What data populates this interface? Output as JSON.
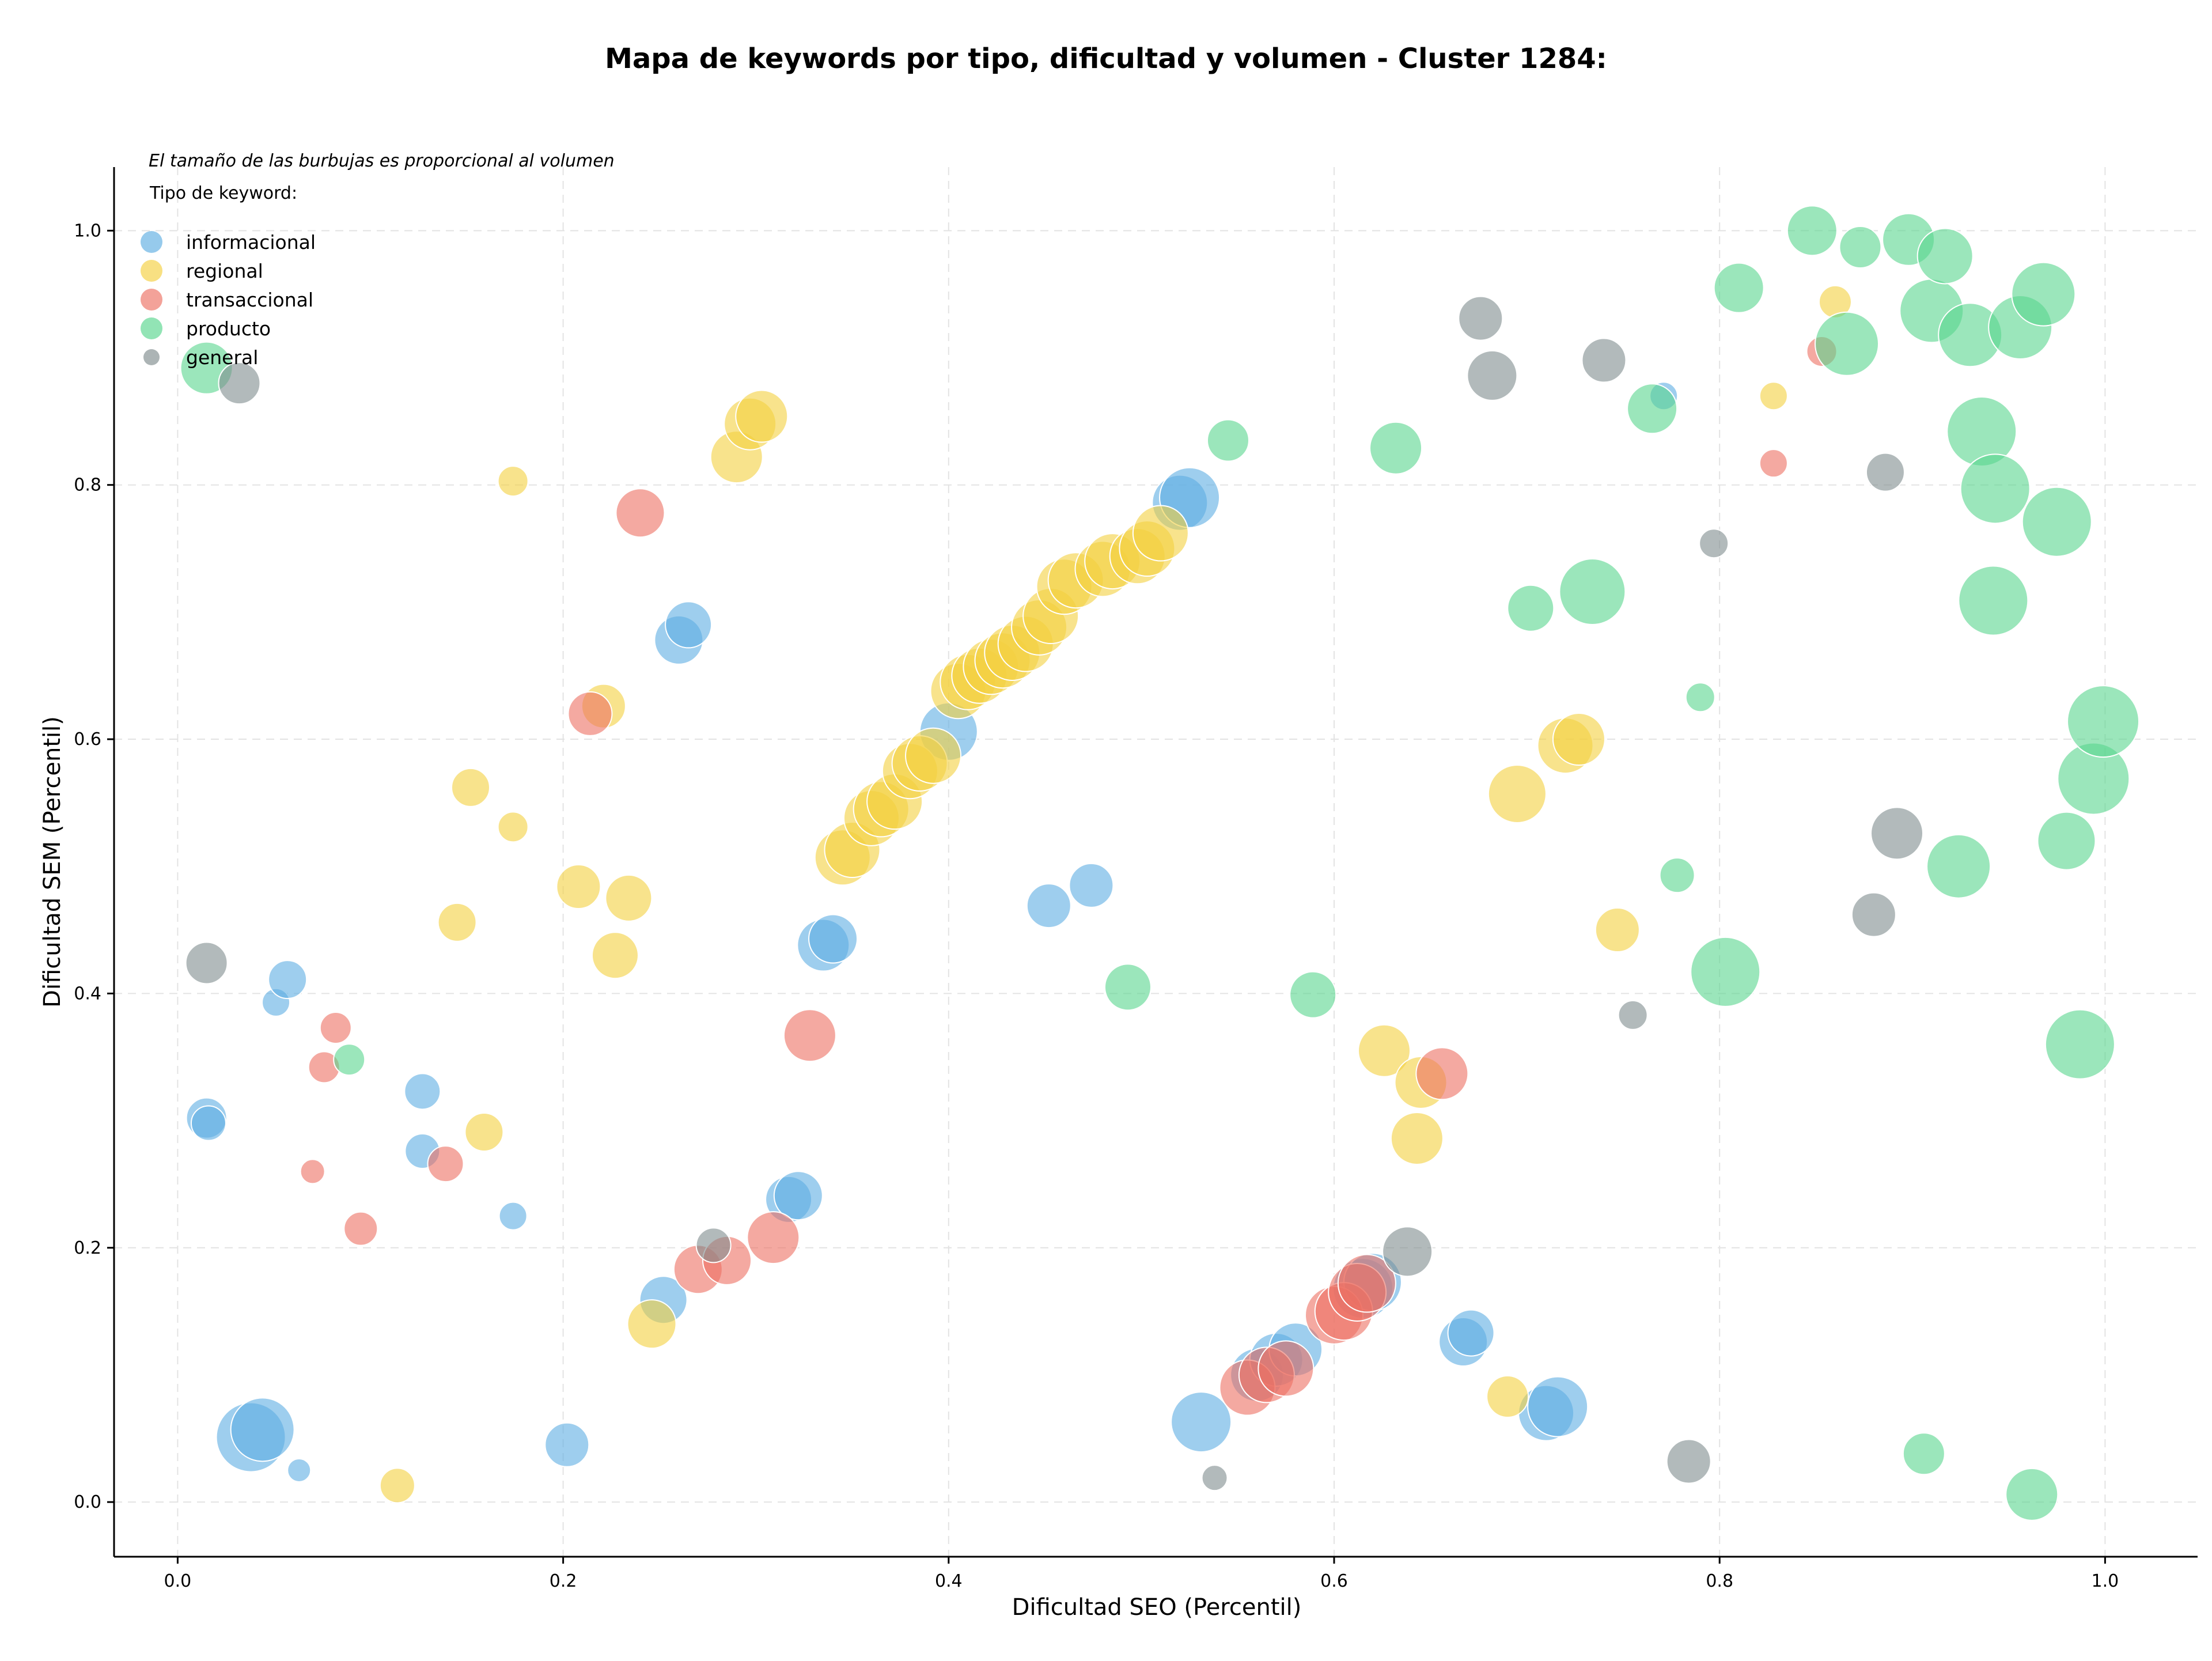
{
  "chart_data": {
    "type": "scatter",
    "title": "Mapa de keywords por tipo, dificultad y volumen - Cluster 1284:",
    "xlabel": "Dificultad SEO (Percentil)",
    "ylabel": "Dificultad SEM (Percentil)",
    "xlim": [
      -0.033,
      1.048
    ],
    "ylim": [
      -0.043,
      1.05
    ],
    "xticks": [
      "0.0",
      "0.2",
      "0.4",
      "0.6",
      "0.8",
      "1.0"
    ],
    "yticks": [
      "0.0",
      "0.2",
      "0.4",
      "0.6",
      "0.8",
      "1.0"
    ],
    "grid": true,
    "legend_placement": "top-left",
    "legend_title": "Tipo de keyword:",
    "size_note": "El tamaño de las burbujas es proporcional al volumen",
    "series": [
      {
        "name": "informacional",
        "color": "#5dade2",
        "points": [
          [
            0.015,
            0.302,
            35
          ],
          [
            0.016,
            0.298,
            30
          ],
          [
            0.051,
            0.393,
            24
          ],
          [
            0.057,
            0.411,
            33
          ],
          [
            0.063,
            0.025,
            20
          ],
          [
            0.038,
            0.051,
            60
          ],
          [
            0.044,
            0.057,
            55
          ],
          [
            0.127,
            0.323,
            31
          ],
          [
            0.127,
            0.276,
            30
          ],
          [
            0.174,
            0.225,
            24
          ],
          [
            0.202,
            0.045,
            38
          ],
          [
            0.252,
            0.159,
            41
          ],
          [
            0.26,
            0.678,
            42
          ],
          [
            0.265,
            0.69,
            40
          ],
          [
            0.317,
            0.238,
            40
          ],
          [
            0.322,
            0.241,
            42
          ],
          [
            0.335,
            0.438,
            45
          ],
          [
            0.34,
            0.443,
            42
          ],
          [
            0.4,
            0.606,
            50
          ],
          [
            0.452,
            0.469,
            38
          ],
          [
            0.474,
            0.485,
            38
          ],
          [
            0.52,
            0.786,
            48
          ],
          [
            0.525,
            0.79,
            52
          ],
          [
            0.531,
            0.063,
            52
          ],
          [
            0.56,
            0.1,
            46
          ],
          [
            0.57,
            0.112,
            46
          ],
          [
            0.58,
            0.12,
            46
          ],
          [
            0.615,
            0.168,
            52
          ],
          [
            0.62,
            0.173,
            50
          ],
          [
            0.667,
            0.126,
            42
          ],
          [
            0.671,
            0.133,
            40
          ],
          [
            0.71,
            0.07,
            48
          ],
          [
            0.716,
            0.075,
            52
          ],
          [
            0.771,
            0.87,
            24
          ]
        ]
      },
      {
        "name": "regional",
        "color": "#f4d03f",
        "points": [
          [
            0.114,
            0.013,
            30
          ],
          [
            0.159,
            0.291,
            33
          ],
          [
            0.145,
            0.456,
            33
          ],
          [
            0.152,
            0.562,
            33
          ],
          [
            0.174,
            0.531,
            26
          ],
          [
            0.174,
            0.803,
            26
          ],
          [
            0.208,
            0.484,
            38
          ],
          [
            0.221,
            0.626,
            38
          ],
          [
            0.227,
            0.43,
            40
          ],
          [
            0.234,
            0.475,
            40
          ],
          [
            0.246,
            0.14,
            42
          ],
          [
            0.29,
            0.822,
            45
          ],
          [
            0.297,
            0.848,
            45
          ],
          [
            0.303,
            0.854,
            45
          ],
          [
            0.345,
            0.507,
            48
          ],
          [
            0.35,
            0.513,
            48
          ],
          [
            0.36,
            0.538,
            48
          ],
          [
            0.365,
            0.545,
            48
          ],
          [
            0.372,
            0.551,
            48
          ],
          [
            0.38,
            0.575,
            48
          ],
          [
            0.385,
            0.581,
            48
          ],
          [
            0.392,
            0.587,
            48
          ],
          [
            0.405,
            0.638,
            48
          ],
          [
            0.41,
            0.645,
            48
          ],
          [
            0.416,
            0.65,
            48
          ],
          [
            0.422,
            0.657,
            48
          ],
          [
            0.428,
            0.662,
            48
          ],
          [
            0.433,
            0.668,
            48
          ],
          [
            0.44,
            0.675,
            48
          ],
          [
            0.447,
            0.688,
            48
          ],
          [
            0.453,
            0.697,
            48
          ],
          [
            0.46,
            0.72,
            48
          ],
          [
            0.466,
            0.725,
            48
          ],
          [
            0.48,
            0.734,
            48
          ],
          [
            0.485,
            0.74,
            48
          ],
          [
            0.498,
            0.744,
            48
          ],
          [
            0.503,
            0.75,
            48
          ],
          [
            0.51,
            0.762,
            48
          ],
          [
            0.626,
            0.355,
            45
          ],
          [
            0.645,
            0.33,
            45
          ],
          [
            0.643,
            0.286,
            45
          ],
          [
            0.69,
            0.083,
            36
          ],
          [
            0.695,
            0.557,
            50
          ],
          [
            0.72,
            0.595,
            48
          ],
          [
            0.727,
            0.6,
            45
          ],
          [
            0.747,
            0.45,
            38
          ],
          [
            0.828,
            0.87,
            24
          ],
          [
            0.86,
            0.944,
            28
          ]
        ]
      },
      {
        "name": "transaccional",
        "color": "#ec7063",
        "points": [
          [
            0.07,
            0.26,
            21
          ],
          [
            0.076,
            0.342,
            27
          ],
          [
            0.082,
            0.373,
            27
          ],
          [
            0.095,
            0.215,
            29
          ],
          [
            0.139,
            0.266,
            31
          ],
          [
            0.214,
            0.62,
            38
          ],
          [
            0.24,
            0.778,
            42
          ],
          [
            0.27,
            0.183,
            42
          ],
          [
            0.285,
            0.19,
            42
          ],
          [
            0.309,
            0.208,
            45
          ],
          [
            0.328,
            0.367,
            45
          ],
          [
            0.555,
            0.09,
            48
          ],
          [
            0.565,
            0.1,
            48
          ],
          [
            0.575,
            0.105,
            48
          ],
          [
            0.6,
            0.147,
            50
          ],
          [
            0.605,
            0.15,
            50
          ],
          [
            0.612,
            0.165,
            50
          ],
          [
            0.617,
            0.172,
            50
          ],
          [
            0.656,
            0.337,
            45
          ],
          [
            0.828,
            0.817,
            24
          ],
          [
            0.853,
            0.905,
            26
          ]
        ]
      },
      {
        "name": "producto",
        "color": "#58d68d",
        "points": [
          [
            0.015,
            0.892,
            45
          ],
          [
            0.089,
            0.348,
            27
          ],
          [
            0.493,
            0.405,
            40
          ],
          [
            0.545,
            0.835,
            36
          ],
          [
            0.589,
            0.399,
            40
          ],
          [
            0.632,
            0.829,
            45
          ],
          [
            0.702,
            0.703,
            40
          ],
          [
            0.734,
            0.716,
            57
          ],
          [
            0.765,
            0.86,
            43
          ],
          [
            0.778,
            0.493,
            30
          ],
          [
            0.79,
            0.633,
            25
          ],
          [
            0.803,
            0.417,
            60
          ],
          [
            0.81,
            0.955,
            43
          ],
          [
            0.848,
            1.0,
            43
          ],
          [
            0.866,
            0.911,
            55
          ],
          [
            0.873,
            0.987,
            36
          ],
          [
            0.898,
            0.993,
            45
          ],
          [
            0.906,
            0.038,
            36
          ],
          [
            0.91,
            0.937,
            55
          ],
          [
            0.917,
            0.98,
            48
          ],
          [
            0.924,
            0.5,
            55
          ],
          [
            0.93,
            0.918,
            55
          ],
          [
            0.936,
            0.842,
            60
          ],
          [
            0.942,
            0.709,
            60
          ],
          [
            0.943,
            0.797,
            60
          ],
          [
            0.956,
            0.924,
            55
          ],
          [
            0.962,
            0.006,
            45
          ],
          [
            0.968,
            0.95,
            55
          ],
          [
            0.975,
            0.771,
            60
          ],
          [
            0.98,
            0.52,
            50
          ],
          [
            0.987,
            0.36,
            60
          ],
          [
            0.994,
            0.569,
            62
          ],
          [
            0.999,
            0.614,
            62
          ]
        ]
      },
      {
        "name": "general",
        "color": "#7f8c8d",
        "points": [
          [
            0.032,
            0.88,
            36
          ],
          [
            0.015,
            0.424,
            36
          ],
          [
            0.278,
            0.202,
            30
          ],
          [
            0.538,
            0.019,
            22
          ],
          [
            0.638,
            0.197,
            43
          ],
          [
            0.676,
            0.931,
            38
          ],
          [
            0.682,
            0.886,
            43
          ],
          [
            0.74,
            0.898,
            38
          ],
          [
            0.755,
            0.383,
            25
          ],
          [
            0.784,
            0.032,
            38
          ],
          [
            0.797,
            0.754,
            25
          ],
          [
            0.886,
            0.81,
            33
          ],
          [
            0.88,
            0.462,
            38
          ],
          [
            0.892,
            0.526,
            45
          ]
        ]
      }
    ]
  }
}
